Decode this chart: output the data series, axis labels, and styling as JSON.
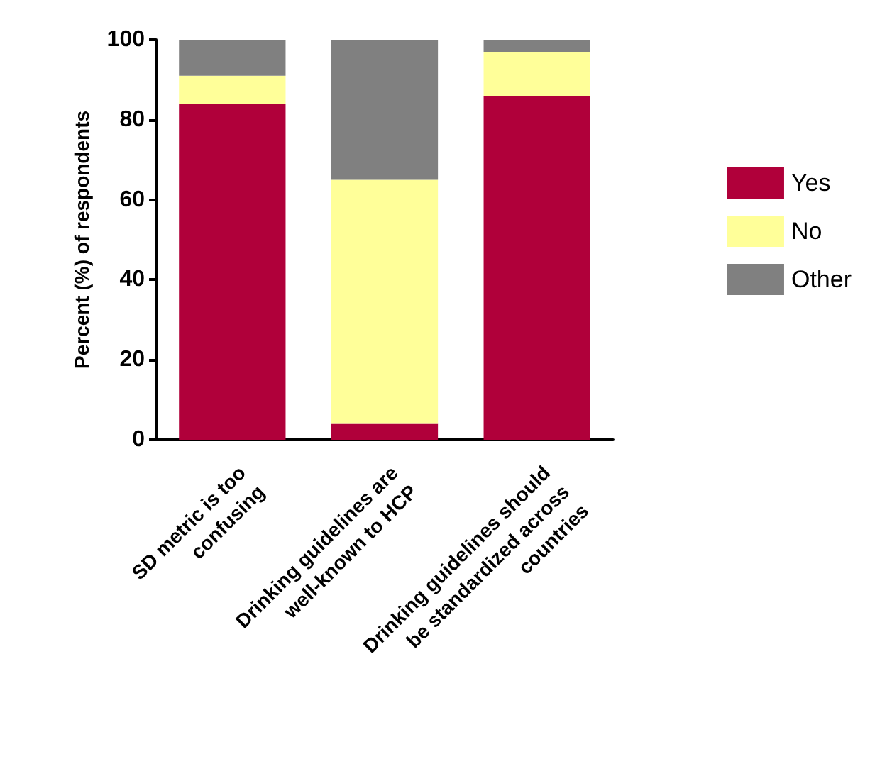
{
  "chart_data": {
    "type": "bar",
    "stacked": true,
    "ylabel": "Percent (%) of respondents",
    "categories": [
      "SD metric is too\nconfusing",
      "Drinking guidelines are\nwell-known to HCP",
      "Drinking guidelines should\nbe standardized across\ncountries"
    ],
    "series": [
      {
        "name": "Yes",
        "color": "#b0003a",
        "values": [
          84,
          4,
          86
        ]
      },
      {
        "name": "No",
        "color": "#ffff99",
        "values": [
          7,
          61,
          11
        ]
      },
      {
        "name": "Other",
        "color": "#808080",
        "values": [
          9,
          35,
          3
        ]
      }
    ],
    "ylim": [
      0,
      100
    ],
    "yticks": [
      0,
      20,
      40,
      60,
      80,
      100
    ],
    "grid": false,
    "legend": "right"
  }
}
